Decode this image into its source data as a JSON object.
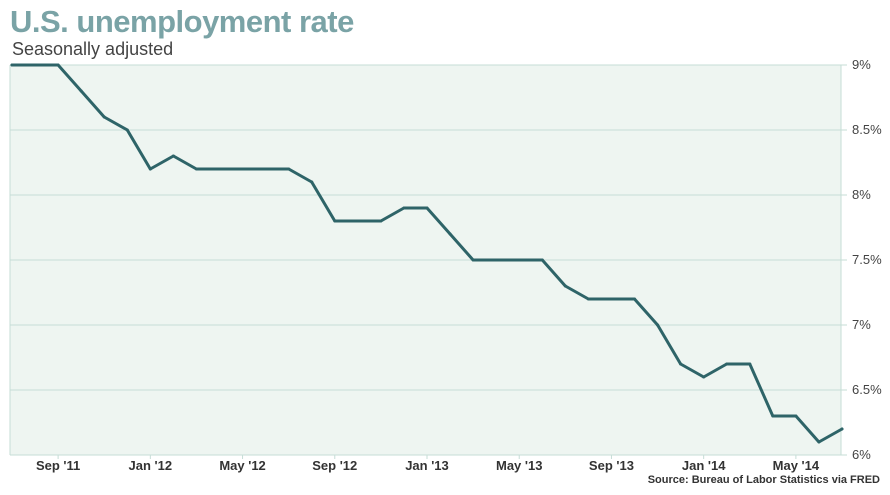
{
  "header": {
    "title": "U.S. unemployment rate",
    "subtitle": "Seasonally adjusted"
  },
  "footer": {
    "source": "Source: Bureau of Labor Statistics via FRED"
  },
  "colors": {
    "line": "#2e6468",
    "plot_background": "#eef5f1",
    "grid": "#c6ddd6",
    "title": "#7aa3a6"
  },
  "chart_data": {
    "type": "line",
    "title": "U.S. unemployment rate",
    "subtitle": "Seasonally adjusted",
    "x_range": [
      "2011-07",
      "2014-07"
    ],
    "ylim": [
      6,
      9
    ],
    "y_ticks": [
      6,
      6.5,
      7,
      7.5,
      8,
      8.5,
      9
    ],
    "y_tick_labels": [
      "6%",
      "6.5%",
      "7%",
      "7.5%",
      "8%",
      "8.5%",
      "9%"
    ],
    "y_axis_position": "right",
    "x_ticks": [
      "2011-09",
      "2012-01",
      "2012-05",
      "2012-09",
      "2013-01",
      "2013-05",
      "2013-09",
      "2014-01",
      "2014-05"
    ],
    "x_tick_labels": [
      "Sep '11",
      "Jan '12",
      "May '12",
      "Sep '12",
      "Jan '13",
      "May '13",
      "Sep '13",
      "Jan '14",
      "May '14"
    ],
    "grid": true,
    "x": [
      "2011-07",
      "2011-08",
      "2011-09",
      "2011-10",
      "2011-11",
      "2011-12",
      "2012-01",
      "2012-02",
      "2012-03",
      "2012-04",
      "2012-05",
      "2012-06",
      "2012-07",
      "2012-08",
      "2012-09",
      "2012-10",
      "2012-11",
      "2012-12",
      "2013-01",
      "2013-02",
      "2013-03",
      "2013-04",
      "2013-05",
      "2013-06",
      "2013-07",
      "2013-08",
      "2013-09",
      "2013-10",
      "2013-11",
      "2013-12",
      "2014-01",
      "2014-02",
      "2014-03",
      "2014-04",
      "2014-05",
      "2014-06",
      "2014-07"
    ],
    "series": [
      {
        "values": [
          9.0,
          9.0,
          9.0,
          8.8,
          8.6,
          8.5,
          8.2,
          8.3,
          8.2,
          8.2,
          8.2,
          8.2,
          8.2,
          8.1,
          7.8,
          7.8,
          7.8,
          7.9,
          7.9,
          7.7,
          7.5,
          7.5,
          7.5,
          7.5,
          7.3,
          7.2,
          7.2,
          7.2,
          7.0,
          6.7,
          6.6,
          6.7,
          6.7,
          6.3,
          6.3,
          6.1,
          6.2
        ]
      }
    ]
  }
}
